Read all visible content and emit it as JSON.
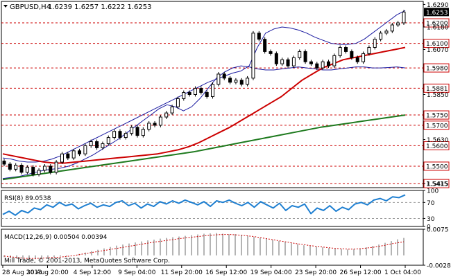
{
  "header": {
    "symbol": "GBPUSD,H4",
    "ohlc": "1.6239 1.6257 1.6222 1.6253"
  },
  "watermark": "Mill Trade, © 2001-2013, MetaQuotes Software Corp.",
  "colors": {
    "resistance_line": "#cc0000",
    "bollinger": "#1a1aa0",
    "ma_fast": "#cc0000",
    "ma_slow": "#1e7a1e",
    "rsi": "#1e7fd1",
    "macd_hist": "#9a9a9a",
    "macd_signal": "#cc0000",
    "current_price_bg": "#000000"
  },
  "chart_data": [
    {
      "type": "candlestick",
      "title": "GBPUSD,H4",
      "current_price": {
        "label": "1.6253",
        "value": 1.6253
      },
      "ylim": [
        1.5395,
        1.6305
      ],
      "y_ticks": [
        "1.6290",
        "1.6180",
        "1.6070",
        "1.5850",
        "1.5630",
        "1.5415"
      ],
      "levels": [
        {
          "label": "1.6200",
          "value": 1.62
        },
        {
          "label": "1.6100",
          "value": 1.61
        },
        {
          "label": "1.5980",
          "value": 1.598
        },
        {
          "label": "1.5881",
          "value": 1.5881
        },
        {
          "label": "1.5750",
          "value": 1.575
        },
        {
          "label": "1.5700",
          "value": 1.57
        },
        {
          "label": "1.5600",
          "value": 1.56
        },
        {
          "label": "1.5500",
          "value": 1.55
        },
        {
          "label": "1.5415",
          "value": 1.5415
        }
      ],
      "x_labels": [
        "28 Aug 2013",
        "30 Aug 20:00",
        "4 Sep 12:00",
        "9 Sep 04:00",
        "11 Sep 20:00",
        "16 Sep 12:00",
        "19 Sep 04:00",
        "23 Sep 20:00",
        "26 Sep 12:00",
        "1 Oct 04:00"
      ],
      "close": [
        1.551,
        1.5485,
        1.5505,
        1.547,
        1.5495,
        1.546,
        1.548,
        1.55,
        1.547,
        1.552,
        1.556,
        1.554,
        1.5575,
        1.556,
        1.56,
        1.562,
        1.559,
        1.561,
        1.564,
        1.567,
        1.564,
        1.566,
        1.569,
        1.565,
        1.568,
        1.571,
        1.57,
        1.574,
        1.576,
        1.579,
        1.583,
        1.586,
        1.585,
        1.588,
        1.586,
        1.584,
        1.59,
        1.595,
        1.593,
        1.591,
        1.592,
        1.59,
        1.593,
        1.615,
        1.612,
        1.606,
        1.605,
        1.6,
        1.602,
        1.599,
        1.603,
        1.606,
        1.601,
        1.6,
        1.598,
        1.601,
        1.599,
        1.604,
        1.608,
        1.606,
        1.603,
        1.601,
        1.605,
        1.608,
        1.612,
        1.615,
        1.616,
        1.619,
        1.62,
        1.6253
      ],
      "bollinger_upper": [
        1.554,
        1.5535,
        1.5525,
        1.552,
        1.552,
        1.5525,
        1.5535,
        1.555,
        1.557,
        1.559,
        1.561,
        1.563,
        1.565,
        1.567,
        1.569,
        1.571,
        1.573,
        1.575,
        1.577,
        1.579,
        1.581,
        1.583,
        1.585,
        1.587,
        1.589,
        1.591,
        1.5925,
        1.594,
        1.5955,
        1.5965,
        1.599,
        1.608,
        1.615,
        1.617,
        1.618,
        1.6175,
        1.6165,
        1.615,
        1.613,
        1.6115,
        1.61,
        1.6095,
        1.6095,
        1.61,
        1.612,
        1.615,
        1.618,
        1.621,
        1.624,
        1.626
      ],
      "bollinger_lower": [
        1.544,
        1.5445,
        1.545,
        1.546,
        1.547,
        1.548,
        1.5485,
        1.549,
        1.55,
        1.5515,
        1.5535,
        1.5555,
        1.558,
        1.5605,
        1.563,
        1.566,
        1.569,
        1.572,
        1.575,
        1.578,
        1.58,
        1.579,
        1.577,
        1.579,
        1.583,
        1.588,
        1.593,
        1.596,
        1.598,
        1.599,
        1.5985,
        1.5975,
        1.597,
        1.597,
        1.5975,
        1.598,
        1.5985,
        1.598,
        1.5975,
        1.597,
        1.597,
        1.5975,
        1.598,
        1.5985,
        1.5985,
        1.598,
        1.598,
        1.5982,
        1.5985,
        1.598
      ],
      "ma_fast": [
        1.556,
        1.555,
        1.554,
        1.553,
        1.552,
        1.5515,
        1.5515,
        1.552,
        1.5525,
        1.553,
        1.5535,
        1.554,
        1.5545,
        1.555,
        1.5555,
        1.556,
        1.557,
        1.558,
        1.5595,
        1.5615,
        1.564,
        1.5665,
        1.569,
        1.572,
        1.575,
        1.578,
        1.581,
        1.584,
        1.588,
        1.592,
        1.595,
        1.598,
        1.6,
        1.602,
        1.603,
        1.604,
        1.605,
        1.606,
        1.607,
        1.608
      ],
      "ma_slow": [
        1.5435,
        1.545,
        1.5465,
        1.548,
        1.5495,
        1.551,
        1.5525,
        1.554,
        1.5555,
        1.557,
        1.559,
        1.561,
        1.563,
        1.565,
        1.567,
        1.569,
        1.5705,
        1.572,
        1.5735,
        1.575
      ],
      "series": [
        {
          "name": "",
          "role": "candles"
        }
      ]
    },
    {
      "type": "line",
      "title": "RSI(8) 89.0538",
      "ylim": [
        10,
        100
      ],
      "y_ticks": [
        "100",
        "70",
        "30",
        "0"
      ],
      "levels": [
        70,
        30
      ],
      "values": [
        40,
        48,
        38,
        50,
        44,
        56,
        52,
        64,
        58,
        70,
        62,
        66,
        54,
        62,
        68,
        58,
        64,
        60,
        70,
        74,
        62,
        68,
        56,
        66,
        60,
        72,
        66,
        74,
        68,
        76,
        70,
        64,
        72,
        60,
        74,
        70,
        76,
        68,
        62,
        70,
        58,
        72,
        64,
        56,
        68,
        50,
        62,
        58,
        66,
        42,
        56,
        50,
        62,
        48,
        58,
        52,
        66,
        70,
        64,
        76,
        80,
        74,
        84,
        82,
        89
      ]
    },
    {
      "type": "bar",
      "title": "MACD(12,26,9) 0.00504 0.00394",
      "ylim": [
        -0.00283,
        0.0075
      ],
      "y_ticks": [
        "0.0075",
        "-0.00283"
      ],
      "histogram": [
        -0.0005,
        -0.0007,
        -0.0009,
        -0.0012,
        -0.0013,
        -0.0011,
        -0.0009,
        -0.0007,
        -0.0005,
        -0.0003,
        -0.0002,
        0.0,
        0.0004,
        0.0008,
        0.0012,
        0.0016,
        0.002,
        0.0024,
        0.0028,
        0.0031,
        0.0034,
        0.0037,
        0.004,
        0.0043,
        0.0045,
        0.0048,
        0.005,
        0.0052,
        0.0054,
        0.0056,
        0.0058,
        0.006,
        0.0062,
        0.0063,
        0.0064,
        0.0062,
        0.006,
        0.0061,
        0.0059,
        0.0056,
        0.0053,
        0.005,
        0.0047,
        0.0044,
        0.0041,
        0.0038,
        0.0035,
        0.0032,
        0.0029,
        0.0027,
        0.0025,
        0.0023,
        0.0021,
        0.0019,
        0.0018,
        0.0017,
        0.0018,
        0.002,
        0.0023,
        0.0027,
        0.0031,
        0.0036,
        0.0041,
        0.0046,
        0.005
      ],
      "signal": [
        -0.0002,
        -0.0004,
        -0.0006,
        -0.0008,
        -0.0009,
        -0.0009,
        -0.0008,
        -0.0007,
        -0.0006,
        -0.0005,
        -0.0003,
        -0.0001,
        0.0002,
        0.0005,
        0.0008,
        0.0011,
        0.0014,
        0.0017,
        0.002,
        0.0023,
        0.0026,
        0.0029,
        0.0032,
        0.0035,
        0.0038,
        0.004,
        0.0043,
        0.0045,
        0.0048,
        0.005,
        0.0052,
        0.0054,
        0.0056,
        0.0058,
        0.0059,
        0.006,
        0.006,
        0.0059,
        0.0058,
        0.0056,
        0.0054,
        0.0051,
        0.0048,
        0.0045,
        0.0042,
        0.0039,
        0.0036,
        0.0033,
        0.0031,
        0.0028,
        0.0026,
        0.0024,
        0.0022,
        0.002,
        0.0019,
        0.0018,
        0.0018,
        0.0019,
        0.0021,
        0.0023,
        0.0026,
        0.0029,
        0.0033,
        0.0036,
        0.0039
      ]
    }
  ]
}
